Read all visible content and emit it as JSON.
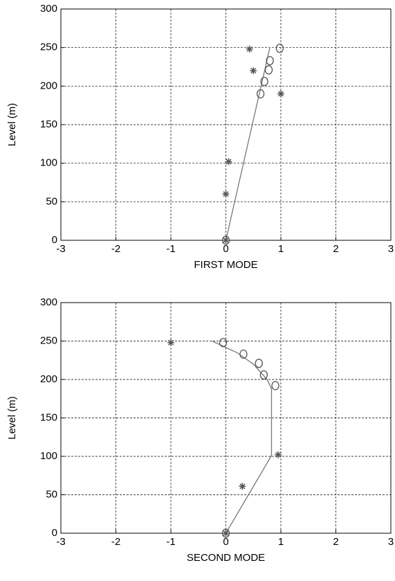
{
  "chart_data": [
    {
      "type": "line",
      "x_label": "FIRST MODE",
      "y_label": "Level (m)",
      "xlim": [
        -3,
        3
      ],
      "ylim": [
        0,
        300
      ],
      "xticks": [
        -3,
        -2,
        -1,
        0,
        1,
        2,
        3
      ],
      "yticks": [
        0,
        50,
        100,
        150,
        200,
        250,
        300
      ],
      "grid": true,
      "series": [
        {
          "marker": "line",
          "color": "#777777",
          "x": [
            0,
            0.8
          ],
          "values": [
            0,
            250
          ]
        },
        {
          "marker": "circle",
          "color": "#555555",
          "x": [
            0,
            0.63,
            0.7,
            0.78,
            0.8,
            0.98
          ],
          "values": [
            0,
            190,
            206,
            221,
            233,
            249
          ]
        },
        {
          "marker": "star",
          "color": "#555555",
          "x": [
            0,
            0,
            0.05,
            0.43,
            0.5,
            1.0
          ],
          "values": [
            0,
            60,
            102,
            248,
            220,
            190
          ]
        }
      ]
    },
    {
      "type": "line",
      "x_label": "SECOND MODE",
      "y_label": "Level (m)",
      "xlim": [
        -3,
        3
      ],
      "ylim": [
        0,
        300
      ],
      "xticks": [
        -3,
        -2,
        -1,
        0,
        1,
        2,
        3
      ],
      "yticks": [
        0,
        50,
        100,
        150,
        200,
        250,
        300
      ],
      "grid": true,
      "series": [
        {
          "marker": "line",
          "color": "#777777",
          "x": [
            -0.25,
            0.2,
            0.5,
            0.75,
            0.83,
            0.83,
            0
          ],
          "values": [
            250,
            235,
            220,
            200,
            188,
            101,
            0
          ]
        },
        {
          "marker": "circle",
          "color": "#555555",
          "x": [
            -0.05,
            0.32,
            0.6,
            0.69,
            0.9,
            0
          ],
          "values": [
            248,
            233,
            221,
            206,
            192,
            0
          ]
        },
        {
          "marker": "star",
          "color": "#555555",
          "x": [
            -1,
            0.95,
            0.3,
            0
          ],
          "values": [
            248,
            102,
            61,
            0
          ]
        }
      ]
    }
  ]
}
